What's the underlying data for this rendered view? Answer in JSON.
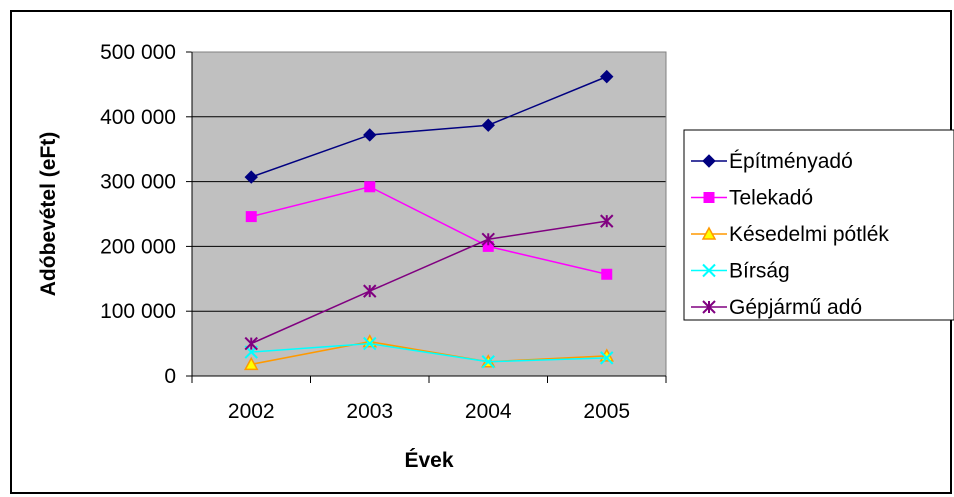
{
  "chart_data": {
    "type": "line",
    "title": "",
    "xlabel": "Évek",
    "ylabel": "Adóbevétel (eFt)",
    "x": [
      "2002",
      "2003",
      "2004",
      "2005"
    ],
    "ylim": [
      0,
      500000
    ],
    "yticks": [
      0,
      100000,
      200000,
      300000,
      400000,
      500000
    ],
    "ytick_labels": [
      "0",
      "100 000",
      "200 000",
      "300 000",
      "400 000",
      "500 000"
    ],
    "grid": true,
    "plot_background": "#c0c0c0",
    "legend_position": "right",
    "series": [
      {
        "name": "Építményadó",
        "values": [
          307000,
          372000,
          387000,
          462000
        ],
        "color": "#000080",
        "marker": "diamond"
      },
      {
        "name": "Telekadó",
        "values": [
          246000,
          292000,
          200000,
          157000
        ],
        "color": "#ff00ff",
        "marker": "square"
      },
      {
        "name": "Késedelmi pótlék",
        "values": [
          18000,
          53000,
          22000,
          31000
        ],
        "color": "#ff9900",
        "marker": "triangle"
      },
      {
        "name": "Bírság",
        "values": [
          37000,
          50000,
          22000,
          28000
        ],
        "color": "#00ffff",
        "marker": "x"
      },
      {
        "name": "Gépjármű adó",
        "values": [
          50000,
          131000,
          211000,
          239000
        ],
        "color": "#800080",
        "marker": "star"
      }
    ]
  }
}
